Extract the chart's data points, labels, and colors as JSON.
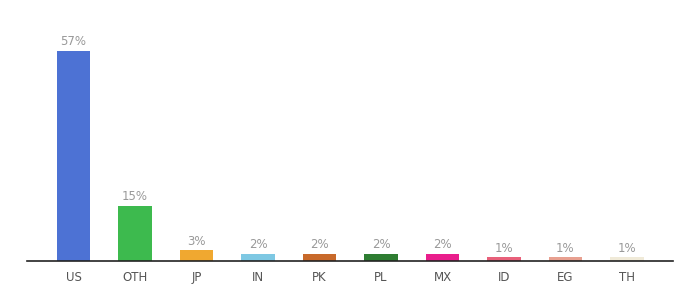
{
  "categories": [
    "US",
    "OTH",
    "JP",
    "IN",
    "PK",
    "PL",
    "MX",
    "ID",
    "EG",
    "TH"
  ],
  "values": [
    57,
    15,
    3,
    2,
    2,
    2,
    2,
    1,
    1,
    1
  ],
  "bar_colors": [
    "#4d72d4",
    "#3dba4e",
    "#f0a830",
    "#7ec8e3",
    "#c8692a",
    "#2e7d32",
    "#e91e8c",
    "#e8607a",
    "#e8a090",
    "#f0ead8"
  ],
  "labels": [
    "57%",
    "15%",
    "3%",
    "2%",
    "2%",
    "2%",
    "2%",
    "1%",
    "1%",
    "1%"
  ],
  "ylim": [
    0,
    65
  ],
  "background_color": "#ffffff",
  "label_color": "#999999",
  "label_fontsize": 8.5,
  "tick_fontsize": 8.5,
  "bar_width": 0.55
}
